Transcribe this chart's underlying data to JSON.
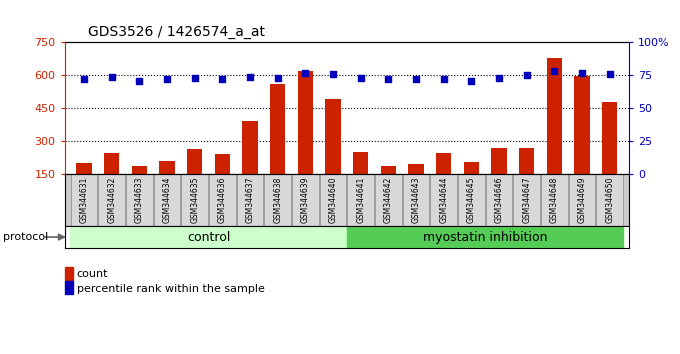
{
  "title": "GDS3526 / 1426574_a_at",
  "samples": [
    "GSM344631",
    "GSM344632",
    "GSM344633",
    "GSM344634",
    "GSM344635",
    "GSM344636",
    "GSM344637",
    "GSM344638",
    "GSM344639",
    "GSM344640",
    "GSM344641",
    "GSM344642",
    "GSM344643",
    "GSM344644",
    "GSM344645",
    "GSM344646",
    "GSM344647",
    "GSM344648",
    "GSM344649",
    "GSM344650"
  ],
  "counts": [
    200,
    245,
    185,
    210,
    265,
    240,
    390,
    560,
    620,
    490,
    250,
    185,
    195,
    245,
    205,
    270,
    270,
    680,
    595,
    480
  ],
  "percentile_ranks": [
    72,
    74,
    71,
    72,
    73,
    72,
    74,
    73,
    77,
    76,
    73,
    72,
    72,
    72,
    71,
    73,
    75,
    78,
    77,
    76
  ],
  "n_control": 10,
  "n_myostatin": 10,
  "ylim_left": [
    150,
    750
  ],
  "ylim_right": [
    0,
    100
  ],
  "yticks_left": [
    150,
    300,
    450,
    600,
    750
  ],
  "yticks_right": [
    0,
    25,
    50,
    75,
    100
  ],
  "bar_color": "#cc2200",
  "dot_color": "#0000bb",
  "control_bg": "#ccffcc",
  "myostatin_bg": "#55cc55",
  "xlabel_bg": "#cccccc",
  "legend_bar_label": "count",
  "legend_dot_label": "percentile rank within the sample",
  "protocol_label": "protocol",
  "control_label": "control",
  "myostatin_label": "myostatin inhibition"
}
